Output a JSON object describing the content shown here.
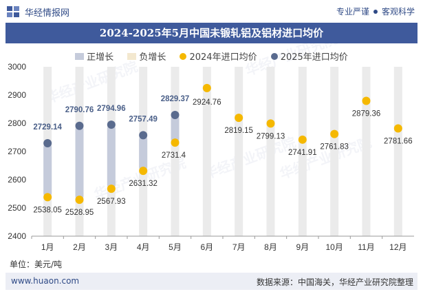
{
  "header": {
    "brand": "华经情报网",
    "tagline_left": "专业严谨",
    "tagline_right": "客观科学"
  },
  "title": "2024-2025年5月中国未锻轧铝及铝材进口均价",
  "legend": {
    "positive": "正增长",
    "negative": "负增长",
    "series2024": "2024年进口均价",
    "series2025": "2025年进口均价"
  },
  "unit": "单位：美元/吨",
  "footer": {
    "url": "www.huaon.com",
    "source": "数据来源：中国海关，华经产业研究院整理"
  },
  "watermark": "华经产业研究院",
  "watermark_url": "www.huaon.com",
  "colors": {
    "positive": "#c5cbdb",
    "negative": "#f3e8cf",
    "s2024": "#f5b800",
    "s2025": "#5a6b8e",
    "label2025": "#4a5f88",
    "bg_bar": "#ebebeb"
  },
  "chart_data": {
    "type": "line",
    "categories": [
      "1月",
      "2月",
      "3月",
      "4月",
      "5月",
      "6月",
      "7月",
      "8月",
      "9月",
      "10月",
      "11月",
      "12月"
    ],
    "series": [
      {
        "name": "2024年进口均价",
        "values": [
          2538.05,
          2528.95,
          2567.93,
          2631.32,
          2731.4,
          2924.76,
          2819.15,
          2799.13,
          2741.91,
          2761.83,
          2879.36,
          2781.66
        ]
      },
      {
        "name": "2025年进口均价",
        "values": [
          2729.14,
          2790.76,
          2794.96,
          2757.49,
          2829.37,
          null,
          null,
          null,
          null,
          null,
          null,
          null
        ]
      }
    ],
    "value_labels_2024": [
      "2538.05",
      "2528.95",
      "2567.93",
      "2631.32",
      "2731.4",
      "2924.76",
      "2819.15",
      "2799.13",
      "2741.91",
      "2761.83",
      "2879.36",
      "2781.66"
    ],
    "value_labels_2025": [
      "2729.14",
      "2790.76",
      "2794.96",
      "2757.49",
      "2829.37"
    ],
    "ylim": [
      2400,
      3000
    ],
    "yticks": [
      "2400",
      "2500",
      "2600",
      "2700",
      "2800",
      "2900",
      "3000"
    ],
    "ytick_values": [
      2400,
      2500,
      2600,
      2700,
      2800,
      2900,
      3000
    ],
    "legend_position": "top-center",
    "grid": false
  }
}
